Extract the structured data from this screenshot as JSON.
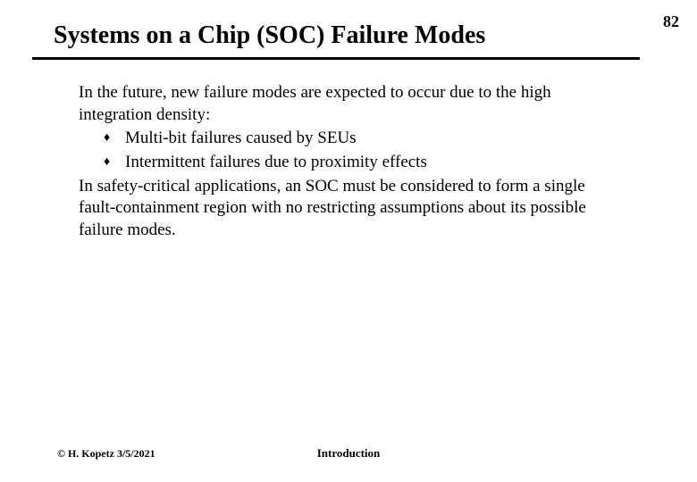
{
  "page_number": "82",
  "title": "Systems on a Chip (SOC) Failure Modes",
  "content": {
    "intro": "In the future, new failure modes are expected to occur due to the high integration density:",
    "bullets": [
      "Multi-bit failures caused by SEUs",
      "Intermittent failures due to proximity effects"
    ],
    "outro": "In safety-critical applications, an SOC must be considered to form a single fault-containment region with no restricting assumptions about its possible failure modes."
  },
  "footer": {
    "left": "© H. Kopetz 3/5/2021",
    "center": "Introduction"
  },
  "style": {
    "bullet_glyph": "♦",
    "background_color": "#ffffff",
    "text_color": "#000000",
    "title_fontsize": 28,
    "body_fontsize": 19,
    "footer_fontsize": 12,
    "page_number_fontsize": 18,
    "underline_color": "#000000",
    "underline_height": 3,
    "font_family": "Times New Roman"
  }
}
